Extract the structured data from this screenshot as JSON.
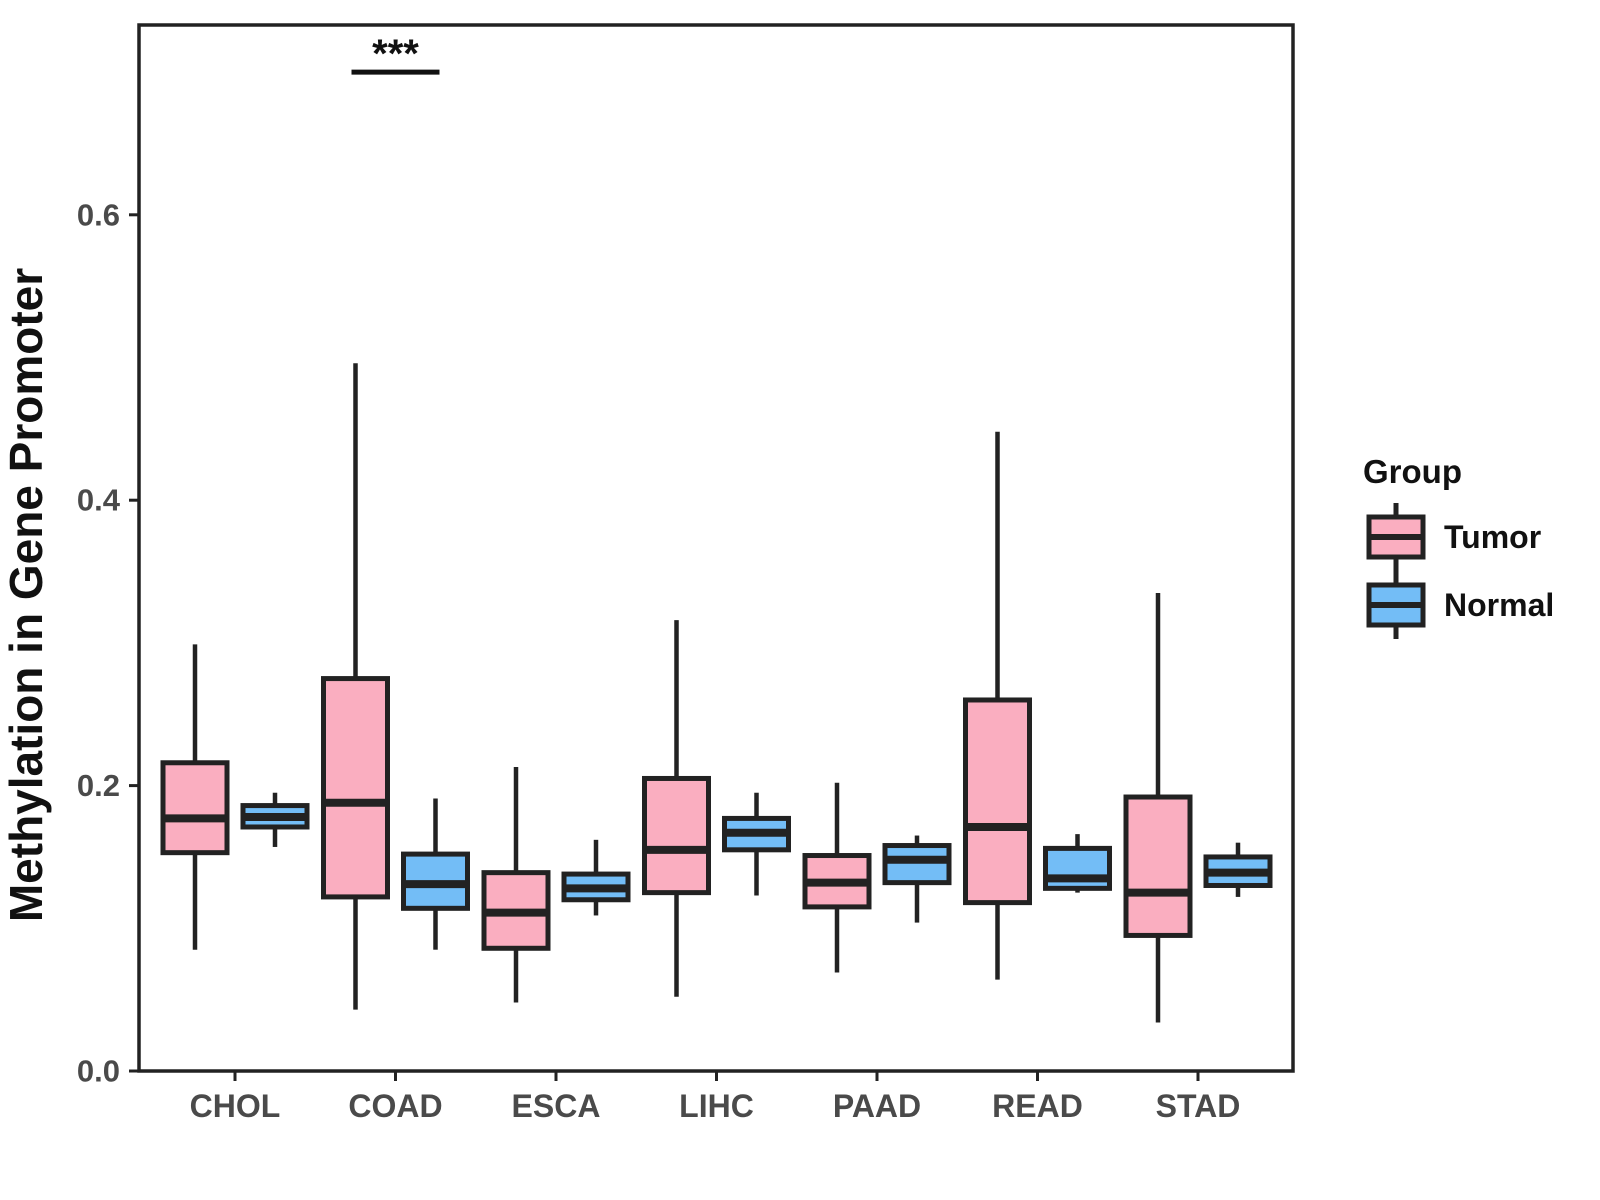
{
  "background": "#FFFFFF",
  "colors": {
    "tumor_fill": "#FAAEC0",
    "normal_fill": "#73BDF6",
    "box_line": "#222222",
    "axis_line": "#222222",
    "axis_text": "#4A4A4A",
    "title_text": "#111111"
  },
  "chart_data": {
    "type": "boxplot",
    "title": "",
    "xlabel": "",
    "ylabel": "Methylation in Gene Promoter",
    "ylim": [
      0,
      0.73
    ],
    "grid": "off",
    "yticks": [
      0,
      0.2,
      0.4,
      0.6
    ],
    "ytick_labels": [
      "0.0",
      "0.2",
      "0.4",
      "0.6"
    ],
    "categories": [
      "CHOL",
      "COAD",
      "ESCA",
      "LIHC",
      "PAAD",
      "READ",
      "STAD"
    ],
    "legend": {
      "title": "Group",
      "position": "right",
      "entries": [
        {
          "label": "Tumor",
          "color": "#FAAEC0"
        },
        {
          "label": "Normal",
          "color": "#73BDF6"
        }
      ]
    },
    "series": [
      {
        "name": "Tumor",
        "color": "#FAAEC0",
        "boxes": [
          {
            "category": "CHOL",
            "whisker_low": 0.085,
            "q1": 0.153,
            "median": 0.177,
            "q3": 0.216,
            "whisker_high": 0.299
          },
          {
            "category": "COAD",
            "whisker_low": 0.043,
            "q1": 0.122,
            "median": 0.188,
            "q3": 0.275,
            "whisker_high": 0.496
          },
          {
            "category": "ESCA",
            "whisker_low": 0.048,
            "q1": 0.086,
            "median": 0.111,
            "q3": 0.139,
            "whisker_high": 0.213
          },
          {
            "category": "LIHC",
            "whisker_low": 0.052,
            "q1": 0.125,
            "median": 0.155,
            "q3": 0.205,
            "whisker_high": 0.316
          },
          {
            "category": "PAAD",
            "whisker_low": 0.069,
            "q1": 0.115,
            "median": 0.132,
            "q3": 0.151,
            "whisker_high": 0.202
          },
          {
            "category": "READ",
            "whisker_low": 0.064,
            "q1": 0.118,
            "median": 0.171,
            "q3": 0.26,
            "whisker_high": 0.448
          },
          {
            "category": "STAD",
            "whisker_low": 0.034,
            "q1": 0.095,
            "median": 0.125,
            "q3": 0.192,
            "whisker_high": 0.335
          }
        ]
      },
      {
        "name": "Normal",
        "color": "#73BDF6",
        "boxes": [
          {
            "category": "CHOL",
            "whisker_low": 0.157,
            "q1": 0.171,
            "median": 0.178,
            "q3": 0.186,
            "whisker_high": 0.195
          },
          {
            "category": "COAD",
            "whisker_low": 0.085,
            "q1": 0.114,
            "median": 0.131,
            "q3": 0.152,
            "whisker_high": 0.191
          },
          {
            "category": "ESCA",
            "whisker_low": 0.109,
            "q1": 0.12,
            "median": 0.128,
            "q3": 0.138,
            "whisker_high": 0.162
          },
          {
            "category": "LIHC",
            "whisker_low": 0.123,
            "q1": 0.155,
            "median": 0.167,
            "q3": 0.177,
            "whisker_high": 0.195
          },
          {
            "category": "PAAD",
            "whisker_low": 0.104,
            "q1": 0.132,
            "median": 0.148,
            "q3": 0.158,
            "whisker_high": 0.165
          },
          {
            "category": "READ",
            "whisker_low": 0.125,
            "q1": 0.128,
            "median": 0.135,
            "q3": 0.156,
            "whisker_high": 0.166
          },
          {
            "category": "STAD",
            "whisker_low": 0.122,
            "q1": 0.13,
            "median": 0.139,
            "q3": 0.15,
            "whisker_high": 0.16
          }
        ]
      }
    ],
    "annotations": [
      {
        "label": "***",
        "category": "COAD",
        "y": 0.7,
        "span": "tumor-to-normal"
      }
    ]
  }
}
